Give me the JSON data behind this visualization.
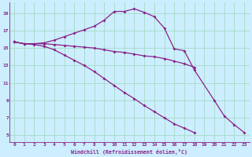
{
  "xlabel": "Windchill (Refroidissement éolien,°C)",
  "bg_color": "#cceeff",
  "line_color": "#882288",
  "grid_color": "#aaddcc",
  "x_ticks": [
    0,
    1,
    2,
    3,
    4,
    5,
    6,
    7,
    8,
    9,
    10,
    11,
    12,
    13,
    14,
    15,
    16,
    17,
    18,
    19,
    20,
    21,
    22,
    23
  ],
  "y_ticks": [
    5,
    7,
    9,
    11,
    13,
    15,
    17,
    19
  ],
  "ylim": [
    4.2,
    20.2
  ],
  "xlim": [
    -0.5,
    23.5
  ],
  "series": [
    {
      "x": [
        0,
        1,
        2,
        3,
        4,
        5,
        6,
        7,
        8,
        9,
        10,
        11,
        12,
        13,
        14,
        15,
        16,
        17,
        18,
        20,
        21,
        22,
        23
      ],
      "y": [
        15.7,
        15.5,
        15.5,
        15.6,
        15.9,
        16.3,
        16.7,
        17.1,
        17.5,
        18.2,
        19.2,
        19.2,
        19.5,
        19.1,
        18.6,
        17.3,
        14.9,
        14.7,
        12.5,
        9.0,
        7.2,
        6.2,
        5.3
      ]
    },
    {
      "x": [
        0,
        1,
        2,
        3,
        4,
        5,
        6,
        7,
        8,
        9,
        10,
        11,
        12,
        13,
        14,
        15,
        16,
        17,
        18
      ],
      "y": [
        15.7,
        15.5,
        15.5,
        15.5,
        15.4,
        15.3,
        15.2,
        15.1,
        15.0,
        14.8,
        14.6,
        14.5,
        14.3,
        14.1,
        14.0,
        13.8,
        13.5,
        13.2,
        12.8
      ]
    },
    {
      "x": [
        0,
        1,
        2,
        3,
        4,
        5,
        6,
        7,
        8,
        9,
        10,
        11,
        12,
        13,
        14,
        15,
        16,
        17,
        18,
        20,
        21,
        22,
        23
      ],
      "y": [
        15.7,
        15.5,
        15.4,
        15.2,
        14.8,
        14.2,
        13.6,
        13.0,
        12.3,
        11.5,
        10.7,
        9.9,
        9.2,
        8.4,
        7.7,
        7.0,
        6.3,
        5.8,
        5.3,
        null,
        null,
        null,
        null
      ]
    }
  ]
}
